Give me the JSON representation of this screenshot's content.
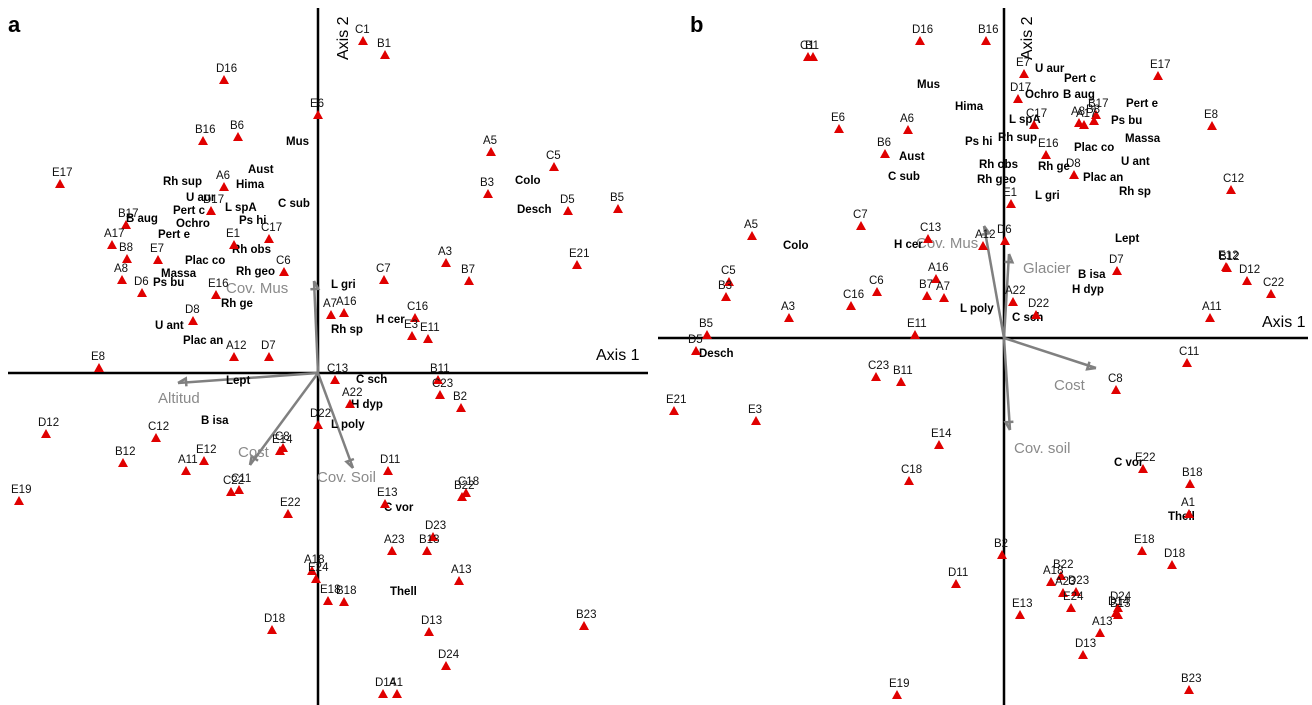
{
  "chart_data": [
    {
      "type": "scatter",
      "panel_label": "a",
      "axes": {
        "x_label": "Axis 1",
        "y_label": "Axis 2",
        "xlim": [
          -318,
          330
        ],
        "ylim": [
          -333,
          365
        ]
      },
      "sites": [
        {
          "label": "C1",
          "x": 45,
          "y": 332
        },
        {
          "label": "B1",
          "x": 67,
          "y": 318
        },
        {
          "label": "D16",
          "x": -94,
          "y": 293
        },
        {
          "label": "E6",
          "x": 0,
          "y": 258
        },
        {
          "label": "B16",
          "x": -115,
          "y": 232
        },
        {
          "label": "B6",
          "x": -80,
          "y": 236
        },
        {
          "label": "A5",
          "x": 173,
          "y": 221
        },
        {
          "label": "C5",
          "x": 236,
          "y": 206
        },
        {
          "label": "E17",
          "x": -258,
          "y": 189
        },
        {
          "label": "B3",
          "x": 170,
          "y": 179
        },
        {
          "label": "D5",
          "x": 250,
          "y": 162
        },
        {
          "label": "B5",
          "x": 300,
          "y": 164
        },
        {
          "label": "A6",
          "x": -94,
          "y": 186
        },
        {
          "label": "D17",
          "x": -107,
          "y": 162
        },
        {
          "label": "B17",
          "x": -192,
          "y": 148
        },
        {
          "label": "C17",
          "x": -49,
          "y": 134
        },
        {
          "label": "A17",
          "x": -206,
          "y": 128
        },
        {
          "label": "E1",
          "x": -84,
          "y": 128
        },
        {
          "label": "C6",
          "x": -34,
          "y": 101
        },
        {
          "label": "B8",
          "x": -191,
          "y": 114
        },
        {
          "label": "A8",
          "x": -196,
          "y": 93
        },
        {
          "label": "E7",
          "x": -160,
          "y": 113
        },
        {
          "label": "D6",
          "x": -176,
          "y": 80
        },
        {
          "label": "E16",
          "x": -102,
          "y": 78
        },
        {
          "label": "D8",
          "x": -125,
          "y": 52
        },
        {
          "label": "C7",
          "x": 66,
          "y": 93
        },
        {
          "label": "A3",
          "x": 128,
          "y": 110
        },
        {
          "label": "B7",
          "x": 151,
          "y": 92
        },
        {
          "label": "E21",
          "x": 259,
          "y": 108
        },
        {
          "label": "A7",
          "x": 13,
          "y": 58
        },
        {
          "label": "A16",
          "x": 26,
          "y": 60
        },
        {
          "label": "C16",
          "x": 97,
          "y": 55
        },
        {
          "label": "E3",
          "x": 94,
          "y": 37
        },
        {
          "label": "E11",
          "x": 110,
          "y": 34
        },
        {
          "label": "A12",
          "x": -84,
          "y": 16
        },
        {
          "label": "D7",
          "x": -49,
          "y": 16
        },
        {
          "label": "E8",
          "x": -219,
          "y": 5
        },
        {
          "label": "C13",
          "x": 17,
          "y": -7
        },
        {
          "label": "B11",
          "x": 120,
          "y": -7
        },
        {
          "label": "C23",
          "x": 122,
          "y": -22
        },
        {
          "label": "A22",
          "x": 32,
          "y": -31
        },
        {
          "label": "B2",
          "x": 143,
          "y": -35
        },
        {
          "label": "D22",
          "x": 0,
          "y": -52
        },
        {
          "label": "C8",
          "x": -35,
          "y": -75
        },
        {
          "label": "E14",
          "x": -38,
          "y": -78
        },
        {
          "label": "D12",
          "x": -272,
          "y": -61
        },
        {
          "label": "C12",
          "x": -162,
          "y": -65
        },
        {
          "label": "B12",
          "x": -195,
          "y": -90
        },
        {
          "label": "E12",
          "x": -114,
          "y": -88
        },
        {
          "label": "A11",
          "x": -132,
          "y": -98
        },
        {
          "label": "C22",
          "x": -87,
          "y": -119
        },
        {
          "label": "C11",
          "x": -79,
          "y": -117
        },
        {
          "label": "D11",
          "x": 70,
          "y": -98
        },
        {
          "label": "C18",
          "x": 148,
          "y": -120
        },
        {
          "label": "B22",
          "x": 144,
          "y": -124
        },
        {
          "label": "E19",
          "x": -299,
          "y": -128
        },
        {
          "label": "E13",
          "x": 67,
          "y": -131
        },
        {
          "label": "E22",
          "x": -30,
          "y": -141
        },
        {
          "label": "D23",
          "x": 115,
          "y": -164
        },
        {
          "label": "A23",
          "x": 74,
          "y": -178
        },
        {
          "label": "B13",
          "x": 109,
          "y": -178
        },
        {
          "label": "A18",
          "x": -6,
          "y": -198
        },
        {
          "label": "A13",
          "x": 141,
          "y": -208
        },
        {
          "label": "E24",
          "x": -2,
          "y": -206
        },
        {
          "label": "E18",
          "x": 10,
          "y": -228
        },
        {
          "label": "B18",
          "x": 26,
          "y": -229
        },
        {
          "label": "D18",
          "x": -46,
          "y": -257
        },
        {
          "label": "B23",
          "x": 266,
          "y": -253
        },
        {
          "label": "D13",
          "x": 111,
          "y": -259
        },
        {
          "label": "D24",
          "x": 128,
          "y": -293
        },
        {
          "label": "D14",
          "x": 65,
          "y": -321
        },
        {
          "label": "A1",
          "x": 79,
          "y": -321
        }
      ],
      "species": [
        {
          "label": "Mus",
          "x": -32,
          "y": 228
        },
        {
          "label": "Aust",
          "x": -70,
          "y": 200
        },
        {
          "label": "Rh sup",
          "x": -155,
          "y": 188
        },
        {
          "label": "Hima",
          "x": -82,
          "y": 185
        },
        {
          "label": "U aur",
          "x": -132,
          "y": 172
        },
        {
          "label": "C sub",
          "x": -40,
          "y": 166
        },
        {
          "label": "Pert c",
          "x": -145,
          "y": 159
        },
        {
          "label": "L spA",
          "x": -93,
          "y": 162
        },
        {
          "label": "B aug",
          "x": -192,
          "y": 151
        },
        {
          "label": "Ochro",
          "x": -142,
          "y": 146
        },
        {
          "label": "Ps hi",
          "x": -79,
          "y": 149
        },
        {
          "label": "Pert e",
          "x": -160,
          "y": 135
        },
        {
          "label": "Rh obs",
          "x": -86,
          "y": 120
        },
        {
          "label": "Plac co",
          "x": -133,
          "y": 109
        },
        {
          "label": "Massa",
          "x": -157,
          "y": 96
        },
        {
          "label": "Rh geo",
          "x": -82,
          "y": 98
        },
        {
          "label": "Ps bu",
          "x": -165,
          "y": 87
        },
        {
          "label": "L gri",
          "x": 13,
          "y": 85
        },
        {
          "label": "Rh ge",
          "x": -97,
          "y": 66
        },
        {
          "label": "Rh sp",
          "x": 13,
          "y": 40
        },
        {
          "label": "H cer",
          "x": 58,
          "y": 50
        },
        {
          "label": "U ant",
          "x": -163,
          "y": 44
        },
        {
          "label": "Plac an",
          "x": -135,
          "y": 29
        },
        {
          "label": "Lept",
          "x": -92,
          "y": -11
        },
        {
          "label": "C sch",
          "x": 38,
          "y": -10
        },
        {
          "label": "H dyp",
          "x": 33,
          "y": -35
        },
        {
          "label": "B isa",
          "x": -117,
          "y": -51
        },
        {
          "label": "L poly",
          "x": 13,
          "y": -55
        },
        {
          "label": "C vor",
          "x": 66,
          "y": -138
        },
        {
          "label": "Thell",
          "x": 72,
          "y": -222
        },
        {
          "label": "Colo",
          "x": 197,
          "y": 189
        },
        {
          "label": "Desch",
          "x": 199,
          "y": 160
        }
      ],
      "vectors": [
        {
          "label": "Cov. Mus",
          "x": -4,
          "y": 92
        },
        {
          "label": "Altitud",
          "x": -140,
          "y": -10
        },
        {
          "label": "Cost",
          "x": -68,
          "y": -92
        },
        {
          "label": "Cov. Soil",
          "x": 35,
          "y": -95
        }
      ]
    },
    {
      "type": "scatter",
      "panel_label": "b",
      "axes": {
        "x_label": "Axis 1",
        "y_label": "Axis 2",
        "xlim": [
          -343,
          305
        ],
        "ylim": [
          -370,
          330
        ]
      },
      "sites": [
        {
          "label": "D16",
          "x": -84,
          "y": 297
        },
        {
          "label": "B16",
          "x": -18,
          "y": 297
        },
        {
          "label": "C1",
          "x": -196,
          "y": 281
        },
        {
          "label": "B1",
          "x": -191,
          "y": 281
        },
        {
          "label": "E7",
          "x": 20,
          "y": 264
        },
        {
          "label": "E17",
          "x": 154,
          "y": 262
        },
        {
          "label": "D17",
          "x": 14,
          "y": 239
        },
        {
          "label": "B17",
          "x": 92,
          "y": 223
        },
        {
          "label": "A8",
          "x": 75,
          "y": 215
        },
        {
          "label": "B8",
          "x": 90,
          "y": 217
        },
        {
          "label": "A17",
          "x": 80,
          "y": 213
        },
        {
          "label": "C17",
          "x": 30,
          "y": 213
        },
        {
          "label": "E8",
          "x": 208,
          "y": 212
        },
        {
          "label": "E6",
          "x": -165,
          "y": 209
        },
        {
          "label": "A6",
          "x": -96,
          "y": 208
        },
        {
          "label": "E16",
          "x": 42,
          "y": 183
        },
        {
          "label": "B6",
          "x": -119,
          "y": 184
        },
        {
          "label": "D8",
          "x": 70,
          "y": 163
        },
        {
          "label": "C12",
          "x": 227,
          "y": 148
        },
        {
          "label": "E1",
          "x": 7,
          "y": 134
        },
        {
          "label": "C7",
          "x": -143,
          "y": 112
        },
        {
          "label": "C13",
          "x": -76,
          "y": 99
        },
        {
          "label": "D6",
          "x": 1,
          "y": 97
        },
        {
          "label": "A12",
          "x": -21,
          "y": 92
        },
        {
          "label": "A5",
          "x": -252,
          "y": 102
        },
        {
          "label": "D7",
          "x": 113,
          "y": 67
        },
        {
          "label": "E12",
          "x": 222,
          "y": 71
        },
        {
          "label": "B12",
          "x": 223,
          "y": 70
        },
        {
          "label": "D12",
          "x": 243,
          "y": 57
        },
        {
          "label": "C22",
          "x": 267,
          "y": 44
        },
        {
          "label": "A16",
          "x": -68,
          "y": 59
        },
        {
          "label": "A7",
          "x": -60,
          "y": 40
        },
        {
          "label": "B7",
          "x": -77,
          "y": 42
        },
        {
          "label": "C6",
          "x": -127,
          "y": 46
        },
        {
          "label": "C16",
          "x": -153,
          "y": 32
        },
        {
          "label": "C5",
          "x": -275,
          "y": 56
        },
        {
          "label": "B3",
          "x": -278,
          "y": 41
        },
        {
          "label": "A3",
          "x": -215,
          "y": 20
        },
        {
          "label": "A22",
          "x": 9,
          "y": 36
        },
        {
          "label": "D22",
          "x": 32,
          "y": 23
        },
        {
          "label": "A11",
          "x": 206,
          "y": 20
        },
        {
          "label": "E11",
          "x": -89,
          "y": 3
        },
        {
          "label": "D5",
          "x": -308,
          "y": -13
        },
        {
          "label": "B5",
          "x": -297,
          "y": 3
        },
        {
          "label": "C11",
          "x": 183,
          "y": -25
        },
        {
          "label": "C23",
          "x": -128,
          "y": -39
        },
        {
          "label": "B11",
          "x": -103,
          "y": -44
        },
        {
          "label": "C8",
          "x": 112,
          "y": -52
        },
        {
          "label": "E21",
          "x": -330,
          "y": -73
        },
        {
          "label": "E3",
          "x": -248,
          "y": -83
        },
        {
          "label": "E14",
          "x": -65,
          "y": -107
        },
        {
          "label": "E22",
          "x": 139,
          "y": -131
        },
        {
          "label": "C18",
          "x": -95,
          "y": -143
        },
        {
          "label": "B18",
          "x": 186,
          "y": -146
        },
        {
          "label": "A1",
          "x": 185,
          "y": -176
        },
        {
          "label": "B2",
          "x": -2,
          "y": -217
        },
        {
          "label": "E18",
          "x": 138,
          "y": -213
        },
        {
          "label": "D18",
          "x": 168,
          "y": -227
        },
        {
          "label": "B22",
          "x": 57,
          "y": -238
        },
        {
          "label": "A18",
          "x": 47,
          "y": -244
        },
        {
          "label": "A23",
          "x": 59,
          "y": -255
        },
        {
          "label": "D23",
          "x": 72,
          "y": -254
        },
        {
          "label": "D11",
          "x": -48,
          "y": -246
        },
        {
          "label": "D24",
          "x": 114,
          "y": -270
        },
        {
          "label": "D14",
          "x": 112,
          "y": -275
        },
        {
          "label": "B13",
          "x": 114,
          "y": -277
        },
        {
          "label": "E13",
          "x": 16,
          "y": -277
        },
        {
          "label": "E24",
          "x": 67,
          "y": -270
        },
        {
          "label": "A13",
          "x": 96,
          "y": -295
        },
        {
          "label": "D13",
          "x": 79,
          "y": -317
        },
        {
          "label": "E19",
          "x": -107,
          "y": -357
        },
        {
          "label": "B23",
          "x": 185,
          "y": -352
        }
      ],
      "species": [
        {
          "label": "U aur",
          "x": 31,
          "y": 266
        },
        {
          "label": "Pert c",
          "x": 60,
          "y": 256
        },
        {
          "label": "Mus",
          "x": -87,
          "y": 250
        },
        {
          "label": "Ochro",
          "x": 21,
          "y": 240
        },
        {
          "label": "B aug",
          "x": 59,
          "y": 240
        },
        {
          "label": "Pert e",
          "x": 122,
          "y": 231
        },
        {
          "label": "Hima",
          "x": -49,
          "y": 228
        },
        {
          "label": "L spA",
          "x": 5,
          "y": 215
        },
        {
          "label": "Ps bu",
          "x": 107,
          "y": 214
        },
        {
          "label": "Rh sup",
          "x": -6,
          "y": 197
        },
        {
          "label": "Ps hi",
          "x": -39,
          "y": 193
        },
        {
          "label": "Massa",
          "x": 121,
          "y": 196
        },
        {
          "label": "Plac co",
          "x": 70,
          "y": 187
        },
        {
          "label": "Aust",
          "x": -105,
          "y": 178
        },
        {
          "label": "U ant",
          "x": 117,
          "y": 173
        },
        {
          "label": "Rh obs",
          "x": -25,
          "y": 170
        },
        {
          "label": "Rh ge",
          "x": 34,
          "y": 168
        },
        {
          "label": "Plac an",
          "x": 79,
          "y": 157
        },
        {
          "label": "Rh geo",
          "x": -27,
          "y": 155
        },
        {
          "label": "C sub",
          "x": -116,
          "y": 158
        },
        {
          "label": "Rh sp",
          "x": 115,
          "y": 143
        },
        {
          "label": "L gri",
          "x": 31,
          "y": 139
        },
        {
          "label": "Colo",
          "x": -221,
          "y": 89
        },
        {
          "label": "H cer",
          "x": -110,
          "y": 90
        },
        {
          "label": "Lept",
          "x": 111,
          "y": 96
        },
        {
          "label": "B isa",
          "x": 74,
          "y": 60
        },
        {
          "label": "H dyp",
          "x": 68,
          "y": 45
        },
        {
          "label": "L poly",
          "x": -44,
          "y": 26
        },
        {
          "label": "C sch",
          "x": 8,
          "y": 17
        },
        {
          "label": "Desch",
          "x": -305,
          "y": -19
        },
        {
          "label": "C vor",
          "x": 110,
          "y": -128
        },
        {
          "label": "Thell",
          "x": 164,
          "y": -182
        }
      ],
      "vectors": [
        {
          "label": "Cov. Mus",
          "x": -20,
          "y": 112
        },
        {
          "label": "Glacier",
          "x": 5,
          "y": 84
        },
        {
          "label": "Cost",
          "x": 92,
          "y": -30
        },
        {
          "label": "Cov. soil",
          "x": 6,
          "y": -92
        }
      ]
    }
  ]
}
